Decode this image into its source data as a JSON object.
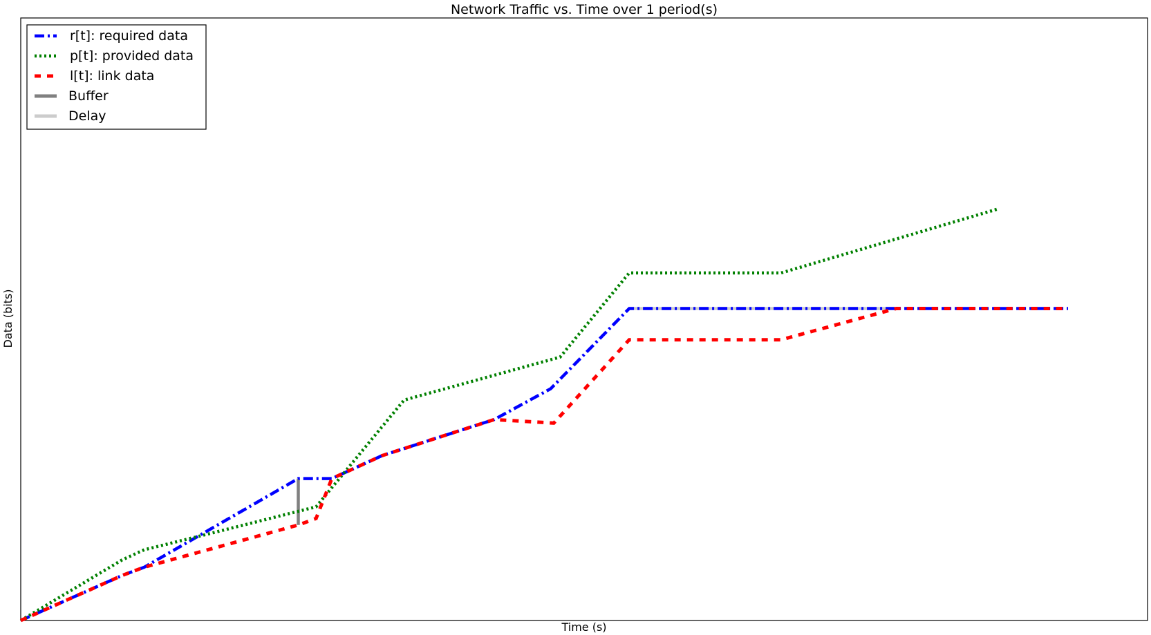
{
  "chart_data": {
    "type": "line",
    "title": "Network Traffic vs. Time over 1 period(s)",
    "xlabel": "Time (s)",
    "ylabel": "Data (bits)",
    "xlim": [
      0,
      1
    ],
    "ylim": [
      0,
      1
    ],
    "x_ticks_shown": false,
    "y_ticks_shown": false,
    "grid": false,
    "legend_position": "top-left",
    "series": [
      {
        "name": "r[t]: required data",
        "color": "#0000ff",
        "style": "dash-dot",
        "x": [
          0.0,
          0.097,
          0.118,
          0.265,
          0.297,
          0.345,
          0.452,
          0.506,
          0.581,
          1.0
        ],
        "y": [
          0.0,
          0.104,
          0.123,
          0.327,
          0.327,
          0.38,
          0.463,
          0.534,
          0.719,
          0.719
        ]
      },
      {
        "name": "p[t]: provided data",
        "color": "#008000",
        "style": "dotted",
        "x": [
          0.0,
          0.097,
          0.118,
          0.18,
          0.282,
          0.366,
          0.515,
          0.581,
          0.726,
          0.934
        ],
        "y": [
          0.0,
          0.14,
          0.163,
          0.2,
          0.262,
          0.508,
          0.607,
          0.801,
          0.801,
          0.949
        ]
      },
      {
        "name": "l[t]: link data",
        "color": "#ff0000",
        "style": "dashed",
        "x": [
          0.0,
          0.097,
          0.118,
          0.265,
          0.282,
          0.297,
          0.345,
          0.452,
          0.509,
          0.581,
          0.726,
          0.836,
          1.0
        ],
        "y": [
          0.0,
          0.104,
          0.123,
          0.22,
          0.235,
          0.327,
          0.38,
          0.463,
          0.455,
          0.647,
          0.647,
          0.719,
          0.719
        ]
      }
    ],
    "annotations": [
      {
        "name": "Buffer",
        "color": "#808080",
        "x": [
          0.265,
          0.265
        ],
        "y": [
          0.22,
          0.327
        ]
      },
      {
        "name": "Delay",
        "color": "#cccccc",
        "x": [
          0.581,
          0.836
        ],
        "y": [
          0.719,
          0.719
        ]
      }
    ],
    "legend_entries": [
      {
        "label": "r[t]: required data",
        "ref": "r"
      },
      {
        "label": "p[t]: provided data",
        "ref": "p"
      },
      {
        "label": "l[t]: link data",
        "ref": "l"
      },
      {
        "label": "Buffer",
        "ref": "buffer"
      },
      {
        "label": "Delay",
        "ref": "delay"
      }
    ]
  }
}
